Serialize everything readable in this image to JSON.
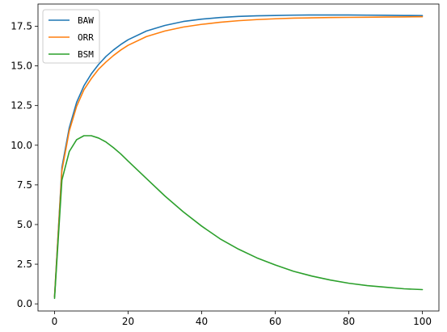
{
  "chart_data": {
    "type": "line",
    "title": "",
    "xlabel": "",
    "ylabel": "",
    "xlim": [
      -4.5,
      104.5
    ],
    "ylim": [
      -0.45,
      18.9
    ],
    "xticks": [
      0,
      20,
      40,
      60,
      80,
      100
    ],
    "yticks": [
      0.0,
      2.5,
      5.0,
      7.5,
      10.0,
      12.5,
      15.0,
      17.5
    ],
    "ytick_labels": [
      "0.0",
      "2.5",
      "5.0",
      "7.5",
      "10.0",
      "12.5",
      "15.0",
      "17.5"
    ],
    "grid": false,
    "legend": "upper-left",
    "x": [
      0,
      2,
      4,
      6,
      8,
      10,
      12,
      14,
      16,
      18,
      20,
      25,
      30,
      35,
      40,
      45,
      50,
      55,
      60,
      65,
      70,
      75,
      80,
      85,
      90,
      95,
      100
    ],
    "series": [
      {
        "name": "BAW",
        "color": "#1f77b4",
        "values": [
          0.45,
          8.6,
          11.1,
          12.7,
          13.75,
          14.5,
          15.1,
          15.6,
          16.0,
          16.35,
          16.65,
          17.2,
          17.55,
          17.8,
          17.95,
          18.05,
          18.12,
          18.16,
          18.18,
          18.2,
          18.21,
          18.21,
          18.21,
          18.2,
          18.19,
          18.18,
          18.17
        ]
      },
      {
        "name": "ORR",
        "color": "#ff7f0e",
        "values": [
          0.45,
          8.4,
          10.9,
          12.45,
          13.5,
          14.2,
          14.8,
          15.25,
          15.65,
          16.0,
          16.3,
          16.85,
          17.2,
          17.45,
          17.62,
          17.75,
          17.85,
          17.92,
          17.97,
          18.01,
          18.03,
          18.05,
          18.06,
          18.07,
          18.08,
          18.09,
          18.1
        ]
      },
      {
        "name": "BSM",
        "color": "#2ca02c",
        "values": [
          0.35,
          7.8,
          9.6,
          10.35,
          10.6,
          10.6,
          10.45,
          10.2,
          9.85,
          9.45,
          9.0,
          7.9,
          6.8,
          5.8,
          4.9,
          4.1,
          3.45,
          2.9,
          2.45,
          2.05,
          1.75,
          1.5,
          1.3,
          1.15,
          1.05,
          0.95,
          0.9
        ]
      }
    ]
  }
}
